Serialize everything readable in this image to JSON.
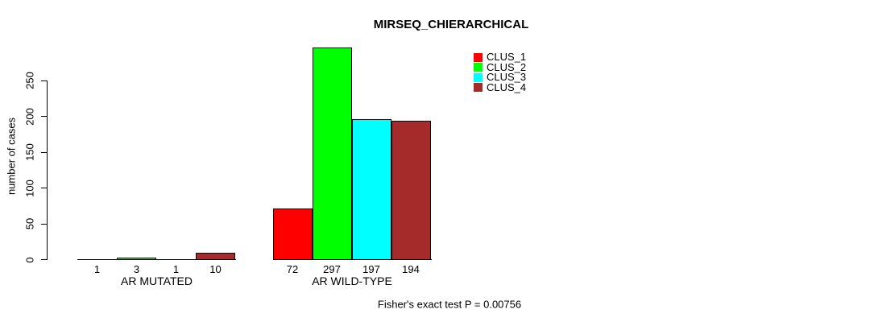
{
  "chart_data": {
    "type": "bar",
    "title": "MIRSEQ_CHIERARCHICAL",
    "xlabel": "",
    "ylabel": "number of cases",
    "ylim": [
      0,
      250
    ],
    "yticks": [
      0,
      50,
      100,
      150,
      200,
      250
    ],
    "categories": [
      "AR MUTATED",
      "AR WILD-TYPE"
    ],
    "series": [
      {
        "name": "CLUS_1",
        "color": "#FF0000",
        "values": [
          1,
          72
        ]
      },
      {
        "name": "CLUS_2",
        "color": "#00FF00",
        "values": [
          3,
          297
        ]
      },
      {
        "name": "CLUS_3",
        "color": "#00FFFF",
        "values": [
          1,
          197
        ]
      },
      {
        "name": "CLUS_4",
        "color": "#A52A2A",
        "values": [
          10,
          194
        ]
      }
    ],
    "bar_value_labels": [
      [
        "1",
        "3",
        "1",
        "10"
      ],
      [
        "72",
        "297",
        "197",
        "194"
      ]
    ],
    "legend_position": "top-right",
    "grid": false,
    "annotation": "Fisher's exact test P = 0.00756"
  }
}
